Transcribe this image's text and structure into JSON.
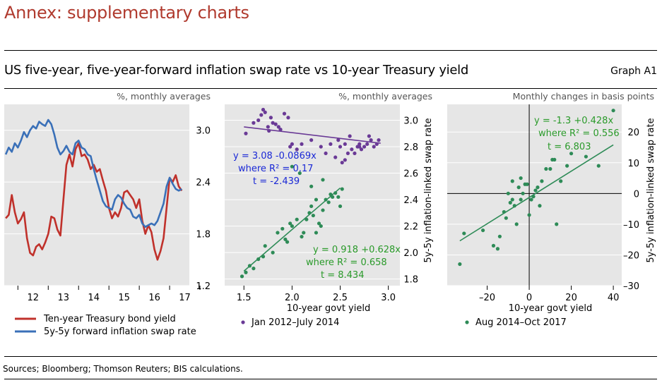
{
  "header": {
    "annex_title": "Annex: supplementary charts",
    "graph_title": "US five-year, five-year-forward inflation swap rate vs 10-year Treasury yield",
    "graph_id": "Graph A1"
  },
  "footer": {
    "sources": "Sources; Bloomberg; Thomson Reuters; BIS calculations."
  },
  "colors": {
    "panel_bg": "#e6e6e6",
    "treasury_line": "#c0312b",
    "swap_line": "#3a70b8",
    "purple": "#6a3a96",
    "green": "#2e8b57",
    "blue_text": "#1a28d6",
    "green_text": "#2a9a2a"
  },
  "chart_data": [
    {
      "type": "line",
      "unit_label": "%, monthly averages",
      "x_tick_labels": [
        "12",
        "13",
        "14",
        "15",
        "16",
        "17"
      ],
      "y_ticks": [
        "1.2",
        "1.8",
        "2.4",
        "3.0"
      ],
      "ylim": [
        1.2,
        3.3
      ],
      "xlim": [
        2011.55,
        2017.65
      ],
      "series": [
        {
          "name": "Ten-year Treasury bond yield",
          "color": "#c0312b",
          "x": [
            2011.6,
            2011.7,
            2011.8,
            2011.9,
            2012.0,
            2012.1,
            2012.2,
            2012.3,
            2012.4,
            2012.5,
            2012.6,
            2012.7,
            2012.8,
            2012.9,
            2013.0,
            2013.1,
            2013.2,
            2013.3,
            2013.4,
            2013.5,
            2013.6,
            2013.7,
            2013.8,
            2013.9,
            2014.0,
            2014.1,
            2014.2,
            2014.3,
            2014.4,
            2014.5,
            2014.6,
            2014.7,
            2014.8,
            2014.9,
            2015.0,
            2015.1,
            2015.2,
            2015.3,
            2015.4,
            2015.5,
            2015.6,
            2015.7,
            2015.8,
            2015.9,
            2016.0,
            2016.1,
            2016.2,
            2016.3,
            2016.4,
            2016.5,
            2016.6,
            2016.7,
            2016.8,
            2016.9,
            2017.0,
            2017.1,
            2017.2,
            2017.3,
            2017.4
          ],
          "values": [
            1.98,
            2.02,
            2.25,
            2.05,
            1.92,
            1.97,
            2.05,
            1.75,
            1.58,
            1.55,
            1.65,
            1.68,
            1.62,
            1.7,
            1.8,
            2.0,
            1.98,
            1.85,
            1.78,
            2.2,
            2.6,
            2.72,
            2.58,
            2.78,
            2.85,
            2.7,
            2.72,
            2.66,
            2.55,
            2.6,
            2.52,
            2.55,
            2.42,
            2.3,
            2.1,
            1.98,
            2.05,
            2.0,
            2.1,
            2.28,
            2.3,
            2.25,
            2.2,
            2.1,
            2.2,
            1.95,
            1.8,
            1.9,
            1.82,
            1.62,
            1.5,
            1.6,
            1.75,
            2.1,
            2.45,
            2.4,
            2.48,
            2.35,
            2.3
          ]
        },
        {
          "name": "5y-5y forward inflation swap rate",
          "color": "#3a70b8",
          "x": [
            2011.6,
            2011.7,
            2011.8,
            2011.9,
            2012.0,
            2012.1,
            2012.2,
            2012.3,
            2012.4,
            2012.5,
            2012.6,
            2012.7,
            2012.8,
            2012.9,
            2013.0,
            2013.1,
            2013.2,
            2013.3,
            2013.4,
            2013.5,
            2013.6,
            2013.7,
            2013.8,
            2013.9,
            2014.0,
            2014.1,
            2014.2,
            2014.3,
            2014.4,
            2014.5,
            2014.6,
            2014.7,
            2014.8,
            2014.9,
            2015.0,
            2015.1,
            2015.2,
            2015.3,
            2015.4,
            2015.5,
            2015.6,
            2015.7,
            2015.8,
            2015.9,
            2016.0,
            2016.1,
            2016.2,
            2016.3,
            2016.4,
            2016.5,
            2016.6,
            2016.7,
            2016.8,
            2016.9,
            2017.0,
            2017.1,
            2017.2,
            2017.3,
            2017.4
          ],
          "values": [
            2.72,
            2.8,
            2.75,
            2.85,
            2.8,
            2.88,
            2.98,
            2.92,
            3.0,
            3.05,
            3.02,
            3.1,
            3.07,
            3.05,
            3.12,
            3.07,
            2.95,
            2.8,
            2.72,
            2.76,
            2.82,
            2.75,
            2.72,
            2.85,
            2.88,
            2.8,
            2.78,
            2.72,
            2.7,
            2.55,
            2.42,
            2.3,
            2.18,
            2.12,
            2.1,
            2.08,
            2.2,
            2.25,
            2.22,
            2.15,
            2.1,
            2.08,
            2.0,
            1.98,
            2.02,
            1.92,
            1.88,
            1.9,
            1.92,
            1.9,
            1.95,
            2.05,
            2.15,
            2.35,
            2.45,
            2.38,
            2.32,
            2.3,
            2.32
          ]
        }
      ]
    },
    {
      "type": "scatter",
      "unit_label": "%, monthly averages",
      "xlabel": "10-year govt yield",
      "ylabel": "5y-5y inflation-linked swap rate",
      "x_tick_labels": [
        "1.5",
        "2.0",
        "2.5",
        "3.0"
      ],
      "x_ticks": [
        1.5,
        2.0,
        2.5,
        3.0
      ],
      "y_tick_labels": [
        "1.8",
        "2.0",
        "2.2",
        "2.4",
        "2.6",
        "2.8",
        "3.0"
      ],
      "y_ticks": [
        1.8,
        2.0,
        2.2,
        2.4,
        2.6,
        2.8,
        3.0
      ],
      "xlim": [
        1.3,
        3.12
      ],
      "ylim": [
        1.75,
        3.12
      ],
      "series": [
        {
          "name": "Jan 2012–July 2014",
          "color": "#6a3a96",
          "x": [
            1.52,
            1.6,
            1.65,
            1.68,
            1.7,
            1.72,
            1.75,
            1.76,
            1.78,
            1.8,
            1.83,
            1.86,
            1.88,
            1.92,
            1.96,
            1.98,
            2.0,
            2.05,
            2.1,
            2.2,
            2.3,
            2.35,
            2.4,
            2.45,
            2.48,
            2.5,
            2.55,
            2.58,
            2.6,
            2.62,
            2.65,
            2.68,
            2.7,
            2.72,
            2.75,
            2.78,
            2.8,
            2.82,
            2.85,
            2.88,
            2.9,
            2.55,
            2.52,
            2.7
          ],
          "values": [
            2.9,
            2.98,
            3.0,
            3.04,
            3.08,
            3.06,
            2.95,
            2.92,
            3.02,
            2.98,
            2.97,
            2.95,
            2.93,
            3.05,
            3.02,
            2.8,
            2.82,
            2.78,
            2.82,
            2.85,
            2.8,
            2.75,
            2.82,
            2.72,
            2.85,
            2.8,
            2.82,
            2.75,
            2.88,
            2.78,
            2.75,
            2.8,
            2.82,
            2.78,
            2.8,
            2.82,
            2.88,
            2.85,
            2.8,
            2.82,
            2.85,
            2.7,
            2.68,
            2.8
          ],
          "fit_label": [
            "y = 3.08 -0.0869x",
            "where R² = 0.17",
            "t = -2.439"
          ],
          "fit": {
            "intercept": 3.08,
            "slope": -0.0869,
            "x_range": [
              1.5,
              2.92
            ]
          }
        },
        {
          "name": "Aug 2014–Oct 2017",
          "color": "#2e8b57",
          "x": [
            1.48,
            1.52,
            1.56,
            1.6,
            1.65,
            1.7,
            1.72,
            1.8,
            1.85,
            1.9,
            1.93,
            1.95,
            1.98,
            2.0,
            2.05,
            2.1,
            2.12,
            2.15,
            2.18,
            2.2,
            2.22,
            2.25,
            2.25,
            2.28,
            2.3,
            2.32,
            2.35,
            2.38,
            2.4,
            2.42,
            2.45,
            2.48,
            2.5,
            2.52,
            2.2,
            2.08,
            2.0,
            2.32
          ],
          "values": [
            1.82,
            1.85,
            1.9,
            1.88,
            1.95,
            1.97,
            2.05,
            2.0,
            2.15,
            2.18,
            2.1,
            2.08,
            2.22,
            2.2,
            2.25,
            2.12,
            2.15,
            2.25,
            2.3,
            2.35,
            2.28,
            2.4,
            2.15,
            2.22,
            2.2,
            2.32,
            2.4,
            2.38,
            2.44,
            2.42,
            2.45,
            2.42,
            2.35,
            2.48,
            2.5,
            2.6,
            2.65,
            2.55
          ],
          "fit_label": [
            "y = 0.918 +0.628x",
            "where R² = 0.658",
            "t = 8.434"
          ],
          "fit": {
            "intercept": 0.918,
            "slope": 0.628,
            "x_range": [
              1.5,
              2.5
            ]
          }
        }
      ]
    },
    {
      "type": "scatter",
      "unit_label": "Monthly changes in basis points",
      "xlabel": "10-year govt yield",
      "ylabel": "5y-5y inflation-linked swap rate",
      "x_tick_labels": [
        "–20",
        "0",
        "20",
        "40"
      ],
      "x_ticks": [
        -20,
        0,
        20,
        40
      ],
      "y_tick_labels": [
        "–30",
        "–20",
        "–10",
        "0",
        "10",
        "20"
      ],
      "y_ticks": [
        -30,
        -20,
        -10,
        0,
        10,
        20
      ],
      "xlim": [
        -39,
        44
      ],
      "ylim": [
        -30,
        29
      ],
      "series": [
        {
          "name": "Aug 2014–Oct 2017",
          "color": "#2e8b57",
          "x": [
            -33,
            -31,
            -22,
            -17,
            -15,
            -14,
            -12,
            -11,
            -9,
            -8,
            -8,
            -7,
            -6,
            -5,
            -4,
            -3,
            -2,
            -1,
            0,
            1,
            2,
            3,
            4,
            5,
            6,
            8,
            10,
            11,
            12,
            13,
            15,
            18,
            20,
            27,
            33,
            40,
            -10,
            -4
          ],
          "values": [
            -23,
            -13,
            -12,
            -17,
            -18,
            -14,
            -6,
            -8,
            -3,
            -2,
            4,
            -4,
            -10,
            2,
            -2,
            0,
            3,
            3,
            -7,
            -2,
            -1,
            1,
            2,
            -4,
            4,
            8,
            8,
            11,
            11,
            -10,
            4,
            9,
            13,
            12,
            9,
            27,
            0,
            5
          ]
        }
      ],
      "fit_label": [
        "y = -1.3 +0.428x",
        "where R² = 0.556",
        "t = 6.803"
      ],
      "fit": {
        "intercept": -1.3,
        "slope": 0.428,
        "x_range": [
          -33,
          40
        ]
      }
    }
  ]
}
